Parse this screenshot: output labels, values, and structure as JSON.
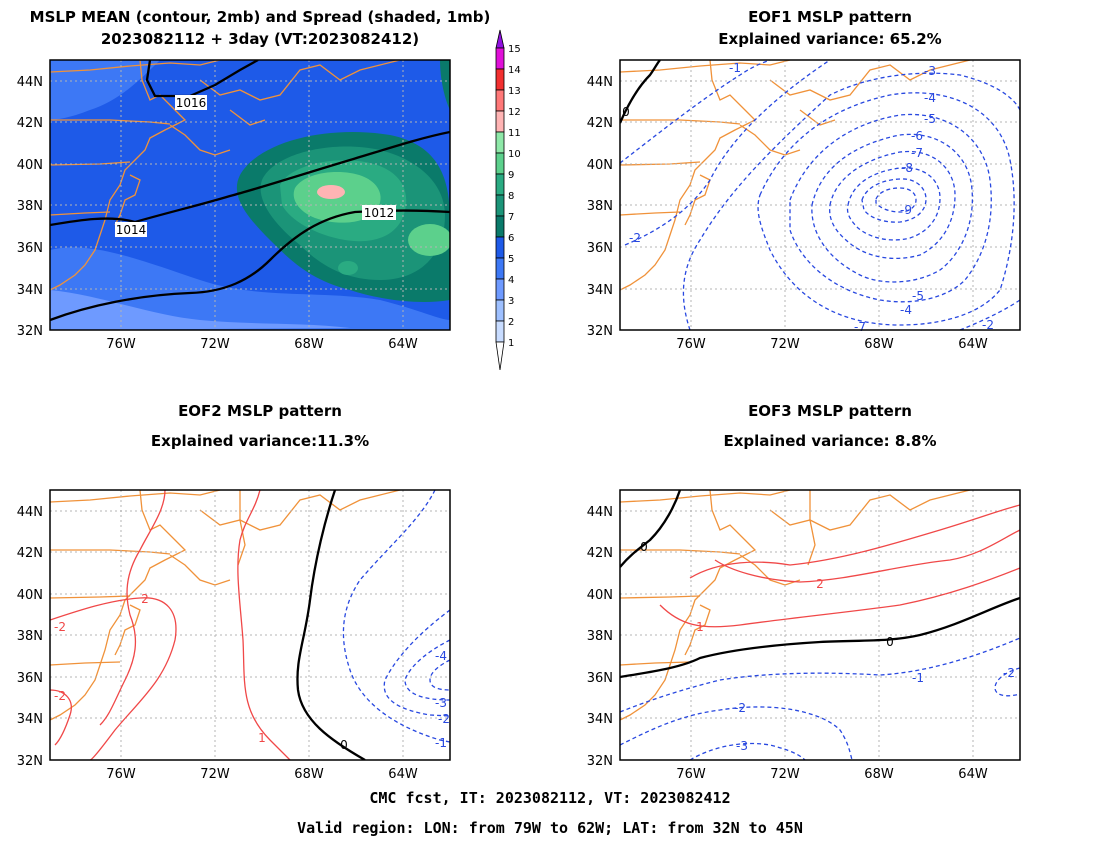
{
  "panels": [
    {
      "id": "mean",
      "title_lines": [
        "MSLP MEAN (contour, 2mb) and Spread (shaded, 1mb)",
        "2023082112 + 3day (VT:2023082412)"
      ],
      "contour_labels": [
        "1016",
        "1014",
        "1012"
      ]
    },
    {
      "id": "eof1",
      "title_lines": [
        "EOF1 MSLP pattern",
        "Explained variance: 65.2%"
      ],
      "contour_labels": [
        "0",
        "-1",
        "-2",
        "-3",
        "-4",
        "-5",
        "-6",
        "-7",
        "-8",
        "-9",
        "-5",
        "-4",
        "-7",
        "-2"
      ]
    },
    {
      "id": "eof2",
      "title_lines": [
        "EOF2 MSLP pattern",
        "Explained variance:11.3%"
      ],
      "contour_labels": [
        "-2",
        "2",
        "-2",
        "1",
        "0",
        "-4",
        "-3",
        "-2",
        "-1"
      ]
    },
    {
      "id": "eof3",
      "title_lines": [
        "EOF3 MSLP pattern",
        "Explained variance: 8.8%"
      ],
      "contour_labels": [
        "0",
        "2",
        "1",
        "0",
        "-1",
        "-2",
        "-3",
        "-2"
      ]
    }
  ],
  "axes": {
    "lon_ticks": [
      "76W",
      "72W",
      "68W",
      "64W"
    ],
    "lat_ticks": [
      "44N",
      "42N",
      "40N",
      "38N",
      "36N",
      "34N",
      "32N"
    ],
    "lon_range": [
      -79,
      -62
    ],
    "lat_range": [
      32,
      45
    ]
  },
  "colorbar": {
    "levels": [
      "1",
      "2",
      "3",
      "4",
      "5",
      "6",
      "7",
      "8",
      "9",
      "10",
      "11",
      "12",
      "13",
      "14",
      "15"
    ],
    "colors": [
      "#c8dcff",
      "#9ec0ff",
      "#6e9aff",
      "#3d78f5",
      "#1e5ae8",
      "#0a7a6a",
      "#1b9478",
      "#2aab82",
      "#5cd08c",
      "#8ee8a8",
      "#ffb4b4",
      "#ff7878",
      "#f23030",
      "#e010d8",
      "#9010e0"
    ]
  },
  "colors": {
    "coast": "#f0923a",
    "positive_contour": "#f04848",
    "negative_contour": "#2848e0",
    "zero_contour": "#000000",
    "grid": "#b4b4b4"
  },
  "footer": {
    "line1": "CMC fcst, IT: 2023082112, VT: 2023082412",
    "line2": "Valid region: LON: from 79W to 62W; LAT: from 32N to 45N"
  }
}
